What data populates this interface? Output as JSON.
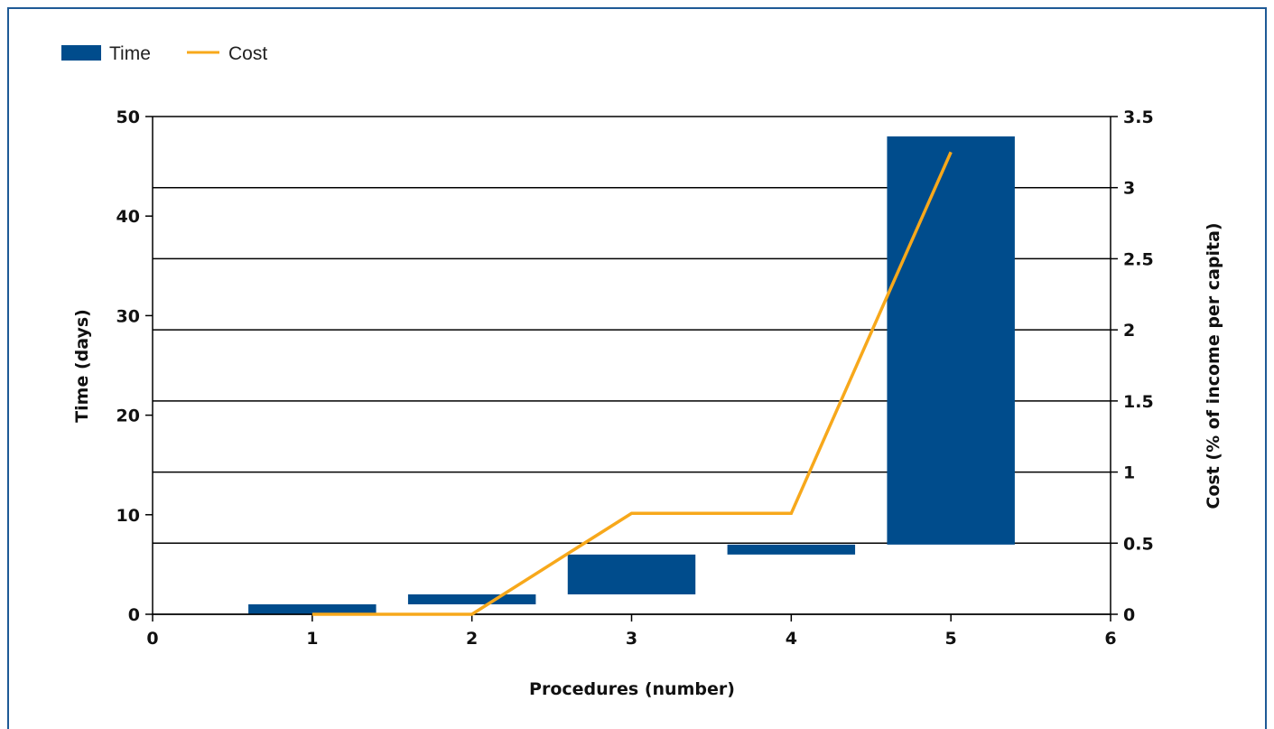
{
  "chart_data": {
    "type": "bar",
    "legend": [
      {
        "name": "Time",
        "kind": "bar"
      },
      {
        "name": "Cost",
        "kind": "line"
      }
    ],
    "legend_position": "top-left",
    "x": {
      "label": "Procedures (number)",
      "min": 0,
      "max": 6,
      "ticks": [
        "0",
        "1",
        "2",
        "3",
        "4",
        "5",
        "6"
      ]
    },
    "y_left": {
      "label": "Time (days)",
      "min": 0,
      "max": 50,
      "ticks": [
        "0",
        "10",
        "20",
        "30",
        "40",
        "50"
      ]
    },
    "y_right": {
      "label": "Cost (% of income per capita)",
      "min": 0,
      "max": 3.5,
      "ticks": [
        "0",
        "0.5",
        "1",
        "1.5",
        "2",
        "2.5",
        "3",
        "3.5"
      ]
    },
    "grid": "horizontal at right-axis ticks",
    "series": [
      {
        "name": "Time",
        "type": "floating-bar",
        "axis": "left",
        "points": [
          {
            "x": 1,
            "start": 0,
            "end": 1
          },
          {
            "x": 2,
            "start": 1,
            "end": 2
          },
          {
            "x": 3,
            "start": 2,
            "end": 6
          },
          {
            "x": 4,
            "start": 6,
            "end": 7
          },
          {
            "x": 5,
            "start": 7,
            "end": 48
          }
        ]
      },
      {
        "name": "Cost",
        "type": "line",
        "axis": "right",
        "points": [
          {
            "x": 1,
            "y": 0
          },
          {
            "x": 2,
            "y": 0
          },
          {
            "x": 3,
            "y": 0.71
          },
          {
            "x": 4,
            "y": 0.71
          },
          {
            "x": 5,
            "y": 3.25
          }
        ]
      }
    ],
    "colors": {
      "time": "#004c8c",
      "cost": "#f7a81b",
      "grid": "#000000",
      "border": "#1f5a96"
    }
  }
}
